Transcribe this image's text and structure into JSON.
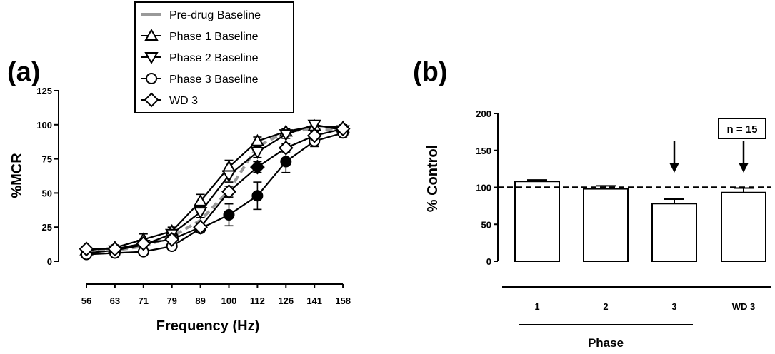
{
  "chart_data": [
    {
      "panel_label": "(a)",
      "type": "line",
      "xlabel": "Frequency (Hz)",
      "ylabel": "%MCR",
      "ylim": [
        0,
        125
      ],
      "yticks": [
        "0",
        "25",
        "50",
        "75",
        "100",
        "125"
      ],
      "categories": [
        "56",
        "63",
        "71",
        "79",
        "89",
        "100",
        "112",
        "126",
        "141",
        "158"
      ],
      "series": [
        {
          "name": "Pre-drug Baseline",
          "marker": "none",
          "dashed": true,
          "color": "#999999",
          "values": [
            7,
            8,
            11,
            18,
            30,
            52,
            84,
            95,
            97,
            96
          ],
          "err": [
            0,
            0,
            0,
            0,
            0,
            0,
            0,
            0,
            0,
            0
          ]
        },
        {
          "name": "Phase 1 Baseline",
          "marker": "triangle-up",
          "values": [
            8,
            10,
            16,
            22,
            44,
            69,
            88,
            95,
            99,
            98
          ],
          "err": [
            2,
            2,
            4,
            3,
            5,
            5,
            3,
            2,
            2,
            2
          ]
        },
        {
          "name": "Phase 2 Baseline",
          "marker": "triangle-down",
          "values": [
            6,
            8,
            12,
            20,
            36,
            63,
            80,
            93,
            100,
            96
          ],
          "err": [
            1,
            1,
            2,
            3,
            4,
            5,
            4,
            3,
            2,
            3
          ]
        },
        {
          "name": "Phase 3 Baseline",
          "marker": "circle",
          "values": [
            5,
            6,
            7,
            11,
            24,
            34,
            48,
            73,
            88,
            94
          ],
          "err": [
            1,
            1,
            1,
            2,
            3,
            8,
            10,
            8,
            4,
            3
          ],
          "filled": [
            false,
            false,
            false,
            false,
            false,
            true,
            true,
            true,
            false,
            false
          ]
        },
        {
          "name": "WD 3",
          "marker": "diamond",
          "values": [
            9,
            9,
            13,
            16,
            25,
            51,
            69,
            83,
            92,
            97
          ],
          "err": [
            1,
            1,
            2,
            2,
            3,
            4,
            4,
            3,
            3,
            2
          ],
          "filled": [
            false,
            false,
            false,
            false,
            false,
            false,
            true,
            false,
            false,
            false
          ]
        }
      ],
      "legend_placement": "top-center"
    },
    {
      "panel_label": "(b)",
      "type": "bar",
      "xlabel": "Phase",
      "ylabel": "% Control",
      "ylim": [
        0,
        200
      ],
      "yticks": [
        "0",
        "50",
        "100",
        "150",
        "200"
      ],
      "categories": [
        "1",
        "2",
        "3",
        "WD 3"
      ],
      "values": [
        108,
        98,
        78,
        93
      ],
      "err": [
        2,
        4,
        6,
        6
      ],
      "reference_line": 100,
      "arrows_over": [
        "3",
        "WD 3"
      ],
      "annotation": "n = 15"
    }
  ]
}
